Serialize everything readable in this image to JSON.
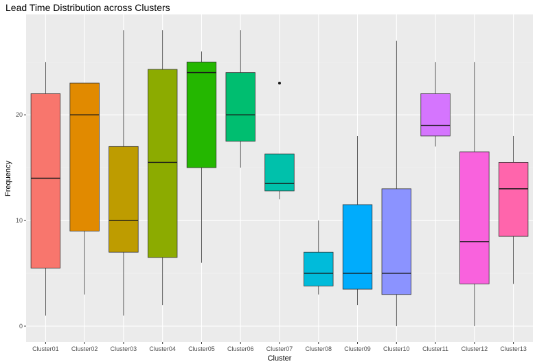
{
  "chart_data": {
    "type": "boxplot",
    "title": "Lead Time Distribution across Clusters",
    "xlabel": "Cluster",
    "ylabel": "Frequency",
    "ylim": [
      -1.5,
      29.5
    ],
    "yticks": [
      0,
      10,
      20
    ],
    "grid": true,
    "legend": "none",
    "categories": [
      "Cluster01",
      "Cluster02",
      "Cluster03",
      "Cluster04",
      "Cluster05",
      "Cluster06",
      "Cluster07",
      "Cluster08",
      "Cluster09",
      "Cluster10",
      "Cluster11",
      "Cluster12",
      "Cluster13"
    ],
    "boxes": [
      {
        "name": "Cluster01",
        "min": 1,
        "q1": 5.5,
        "median": 14,
        "q3": 22,
        "max": 25,
        "outliers": [],
        "color": "#F8766D"
      },
      {
        "name": "Cluster02",
        "min": 3,
        "q1": 9,
        "median": 20,
        "q3": 23,
        "max": 23,
        "outliers": [],
        "color": "#E18A00"
      },
      {
        "name": "Cluster03",
        "min": 1,
        "q1": 7,
        "median": 10,
        "q3": 17,
        "max": 28,
        "outliers": [],
        "color": "#BE9C00"
      },
      {
        "name": "Cluster04",
        "min": 2,
        "q1": 6.5,
        "median": 15.5,
        "q3": 24.3,
        "max": 28,
        "outliers": [],
        "color": "#8CAB00"
      },
      {
        "name": "Cluster05",
        "min": 6,
        "q1": 15,
        "median": 24,
        "q3": 25,
        "max": 26,
        "outliers": [],
        "color": "#24B700"
      },
      {
        "name": "Cluster06",
        "min": 15,
        "q1": 17.5,
        "median": 20,
        "q3": 24,
        "max": 28,
        "outliers": [],
        "color": "#00BE70"
      },
      {
        "name": "Cluster07",
        "min": 12,
        "q1": 12.8,
        "median": 13.5,
        "q3": 16.3,
        "max": 16.3,
        "outliers": [
          23
        ],
        "color": "#00C1AB"
      },
      {
        "name": "Cluster08",
        "min": 3,
        "q1": 3.8,
        "median": 5,
        "q3": 7,
        "max": 10,
        "outliers": [],
        "color": "#00BBDA"
      },
      {
        "name": "Cluster09",
        "min": 2,
        "q1": 3.5,
        "median": 5,
        "q3": 11.5,
        "max": 18,
        "outliers": [],
        "color": "#00ACFC"
      },
      {
        "name": "Cluster10",
        "min": 0,
        "q1": 3,
        "median": 5,
        "q3": 13,
        "max": 27,
        "outliers": [],
        "color": "#8B93FF"
      },
      {
        "name": "Cluster11",
        "min": 17,
        "q1": 18,
        "median": 19,
        "q3": 22,
        "max": 25,
        "outliers": [],
        "color": "#D575FE"
      },
      {
        "name": "Cluster12",
        "min": 0,
        "q1": 4,
        "median": 8,
        "q3": 16.5,
        "max": 25,
        "outliers": [],
        "color": "#F962DD"
      },
      {
        "name": "Cluster13",
        "min": 4,
        "q1": 8.5,
        "median": 13,
        "q3": 15.5,
        "max": 18,
        "outliers": [],
        "color": "#FF65AC"
      }
    ]
  }
}
